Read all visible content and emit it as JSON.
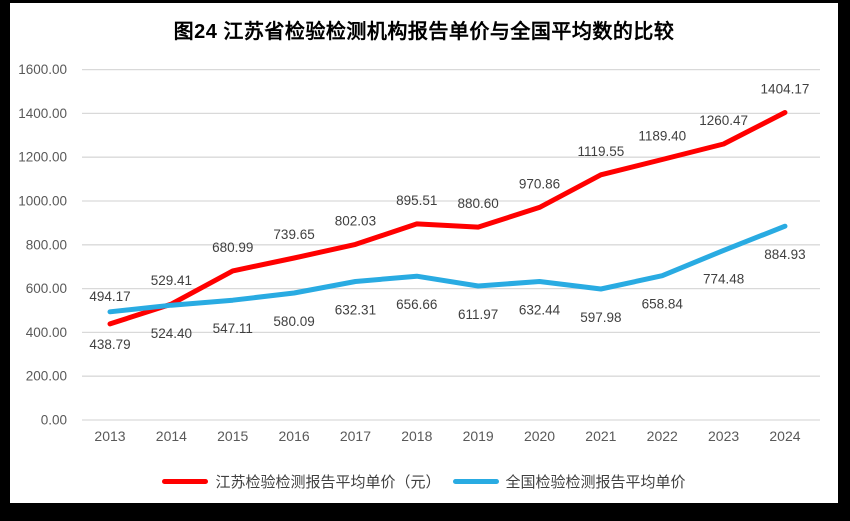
{
  "chart_data": {
    "type": "line",
    "title": "图24  江苏省检验检测机构报告单价与全国平均数的比较",
    "categories": [
      "2013",
      "2014",
      "2015",
      "2016",
      "2017",
      "2018",
      "2019",
      "2020",
      "2021",
      "2022",
      "2023",
      "2024"
    ],
    "yticks": [
      "0.00",
      "200.00",
      "400.00",
      "600.00",
      "800.00",
      "1000.00",
      "1200.00",
      "1400.00",
      "1600.00"
    ],
    "ylim": [
      0,
      1600
    ],
    "ytick_step": 200,
    "grid": true,
    "legend_position": "bottom",
    "series": [
      {
        "name": "江苏检验检测报告平均单价（元）",
        "color": "#ff0000",
        "values": [
          438.79,
          529.41,
          680.99,
          739.65,
          802.03,
          895.51,
          880.6,
          970.86,
          1119.55,
          1189.4,
          1260.47,
          1404.17
        ],
        "labels": [
          "438.79",
          "529.41",
          "680.99",
          "739.65",
          "802.03",
          "895.51",
          "880.60",
          "970.86",
          "1119.55",
          "1189.40",
          "1260.47",
          "1404.17"
        ],
        "label_placement": "above",
        "label_placement_overrides": {
          "0": "below"
        }
      },
      {
        "name": "全国检验检测报告平均单价",
        "color": "#29abe2",
        "values": [
          494.17,
          524.4,
          547.11,
          580.09,
          632.31,
          656.66,
          611.97,
          632.44,
          597.98,
          658.84,
          774.48,
          884.93
        ],
        "labels": [
          "494.17",
          "524.40",
          "547.11",
          "580.09",
          "632.31",
          "656.66",
          "611.97",
          "632.44",
          "597.98",
          "658.84",
          "774.48",
          "884.93"
        ],
        "label_placement": "below",
        "label_placement_overrides": {
          "0": "above"
        }
      }
    ],
    "colors": {
      "gridline": "#d9d9d9",
      "axis_text": "#595959",
      "data_label_text": "#404040",
      "frame": "#000000",
      "background": "#ffffff"
    }
  }
}
